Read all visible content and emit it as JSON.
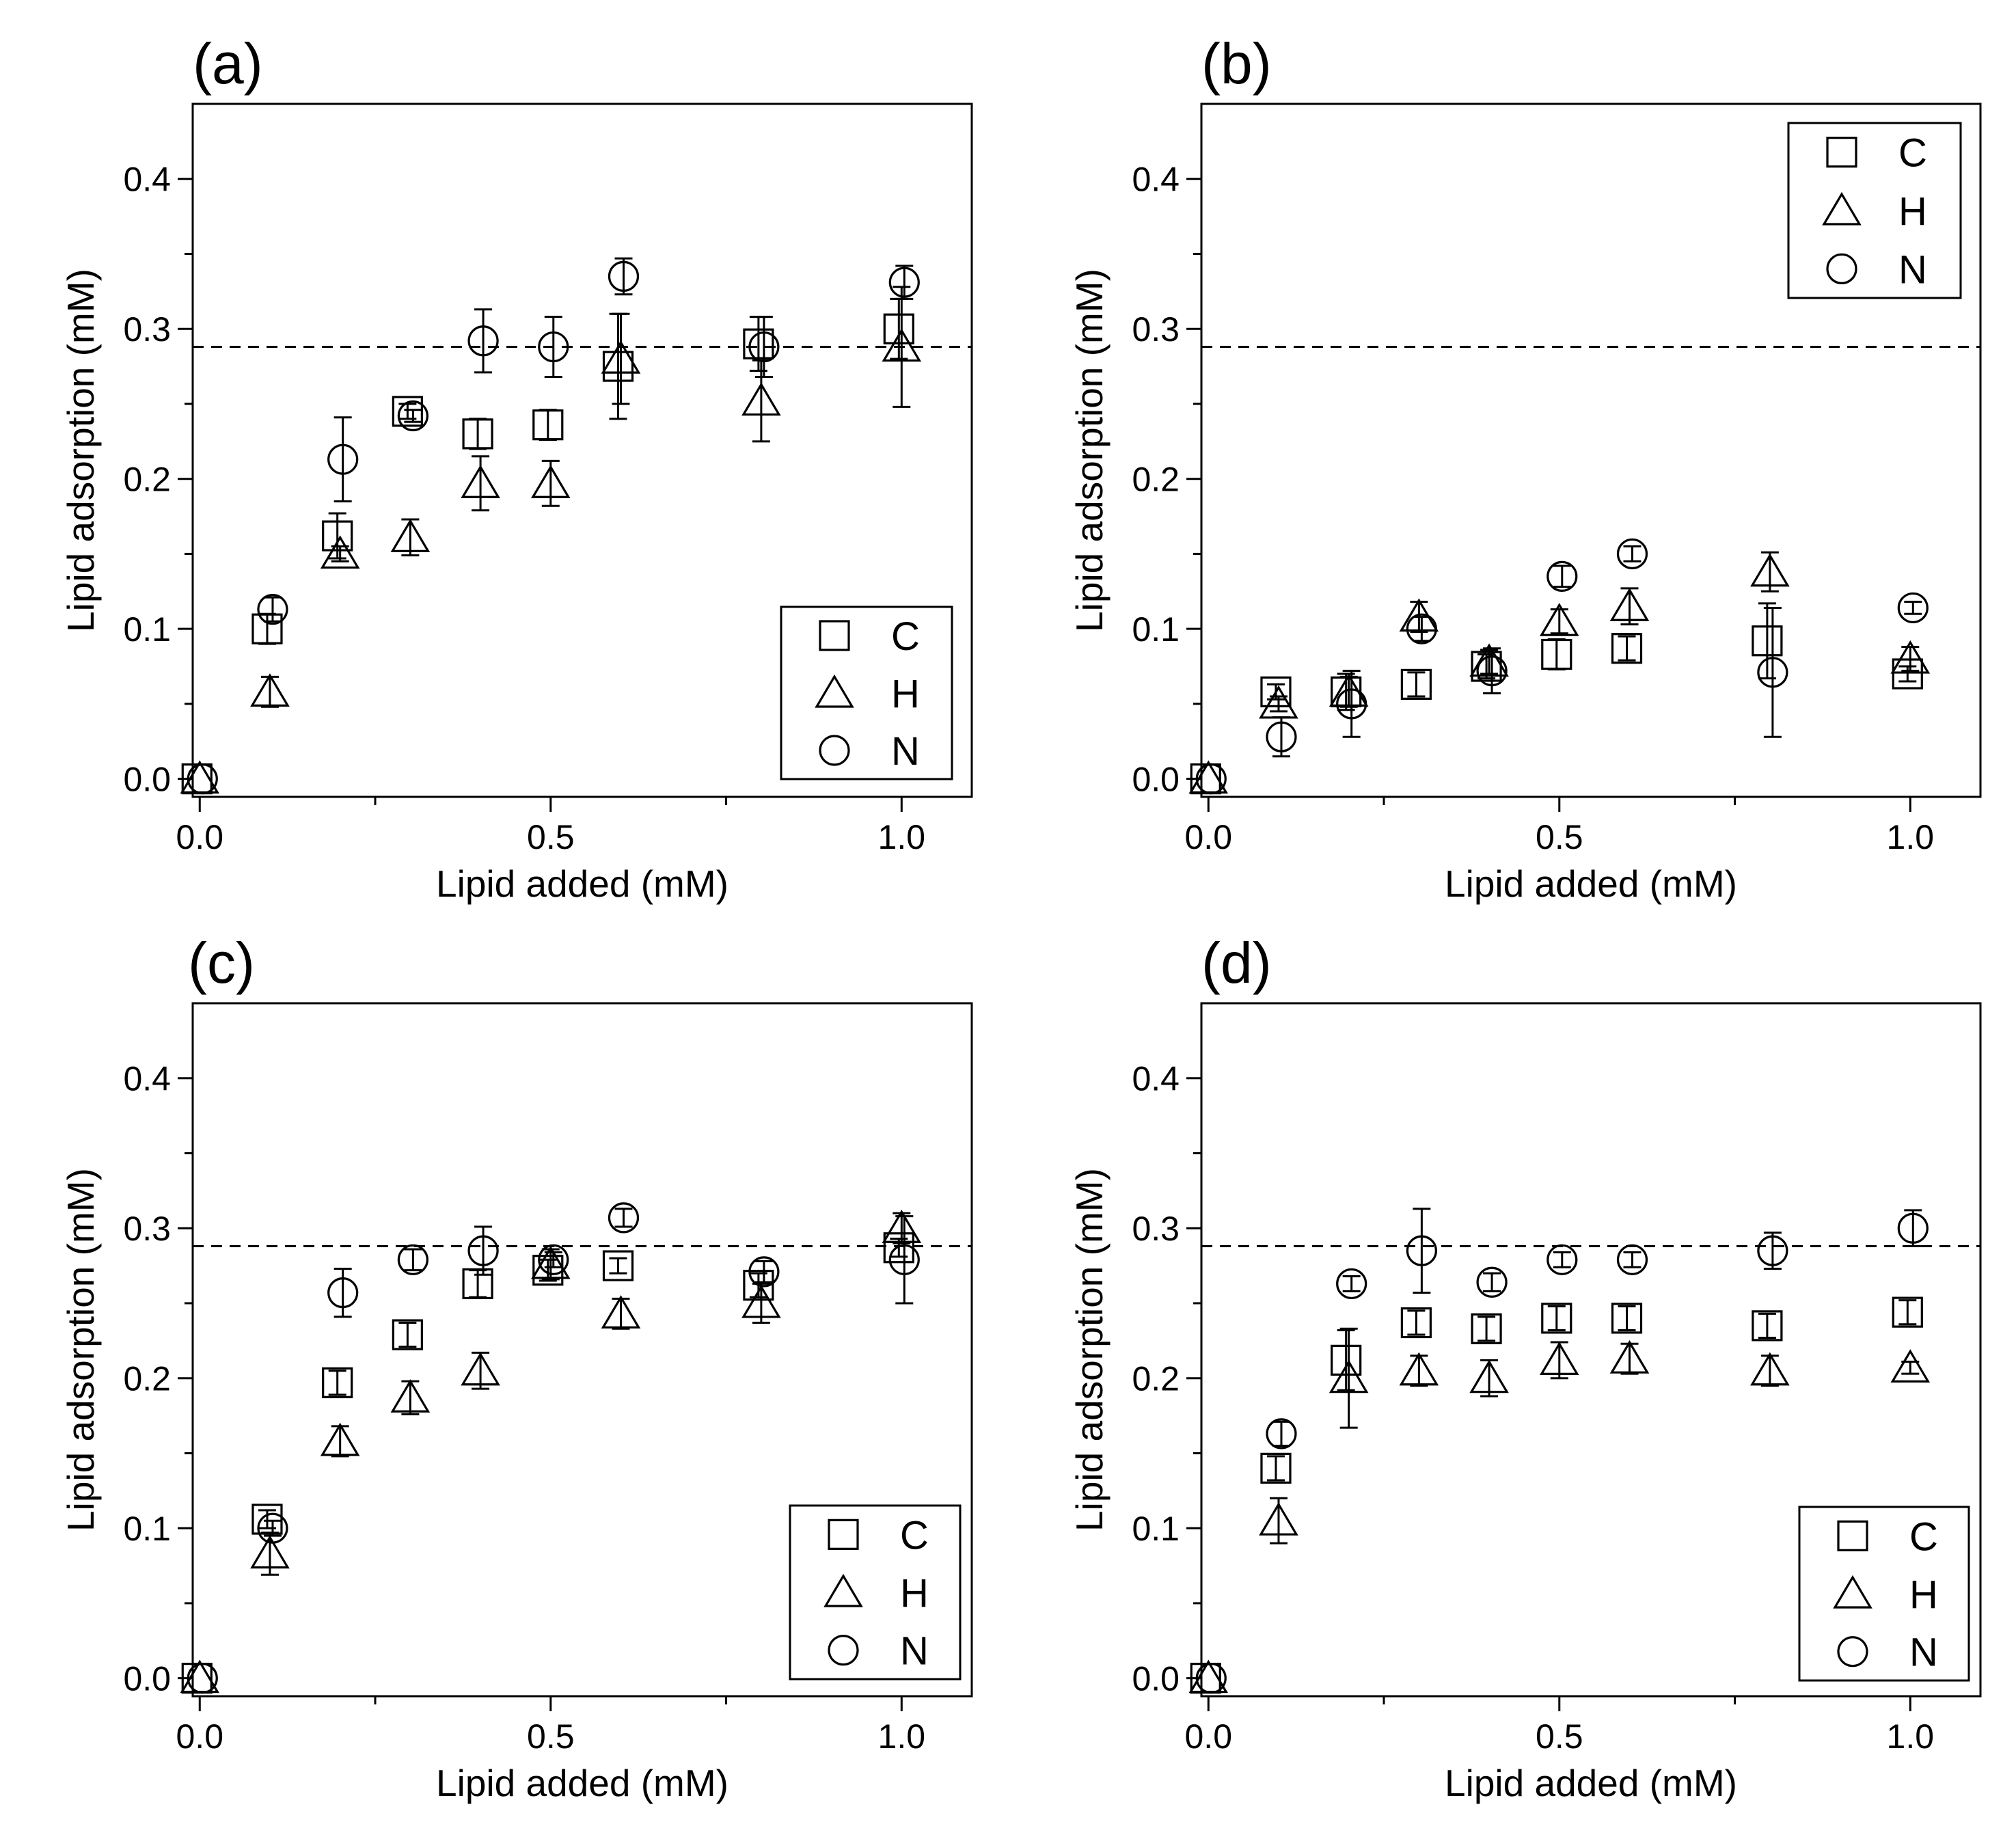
{
  "figure": {
    "reference_line_y": 0.288
  },
  "chart_data": [
    {
      "type": "scatter",
      "title": "(a)",
      "xlabel": "Lipid added (mM)",
      "ylabel": "Lipid adsorption (mM)",
      "xlim": [
        -0.01,
        1.1
      ],
      "ylim": [
        -0.012,
        0.45
      ],
      "xticks": [
        0.0,
        0.5,
        1.0
      ],
      "xtick_labels": [
        "0.0",
        "0.5",
        "1.0"
      ],
      "yticks": [
        0.0,
        0.1,
        0.2,
        0.3,
        0.4
      ],
      "ytick_labels": [
        "0.0",
        "0.1",
        "0.2",
        "0.3",
        "0.4"
      ],
      "reference_line": 0.288,
      "legend": {
        "position": "bottom-right",
        "labels": [
          "C",
          "H",
          "N"
        ]
      },
      "series": [
        {
          "name": "C",
          "marker": "square",
          "x": [
            0,
            0.1,
            0.2,
            0.3,
            0.4,
            0.5,
            0.6,
            0.8,
            1.0
          ],
          "y": [
            0,
            0.1,
            0.162,
            0.245,
            0.23,
            0.236,
            0.275,
            0.29,
            0.3
          ],
          "err": [
            0,
            0.01,
            0.015,
            0.005,
            0.01,
            0.01,
            0.035,
            0.018,
            0.02
          ]
        },
        {
          "name": "H",
          "marker": "triangle",
          "x": [
            0,
            0.1,
            0.2,
            0.3,
            0.4,
            0.5,
            0.6,
            0.8,
            1.0
          ],
          "y": [
            0,
            0.058,
            0.15,
            0.161,
            0.197,
            0.197,
            0.28,
            0.252,
            0.288
          ],
          "err": [
            0,
            0.01,
            0.005,
            0.012,
            0.018,
            0.015,
            0.03,
            0.027,
            0.04
          ]
        },
        {
          "name": "N",
          "marker": "circle",
          "x": [
            0,
            0.1,
            0.2,
            0.3,
            0.4,
            0.5,
            0.6,
            0.8,
            1.0
          ],
          "y": [
            0,
            0.113,
            0.213,
            0.242,
            0.292,
            0.288,
            0.335,
            0.288,
            0.331
          ],
          "err": [
            0,
            0.008,
            0.028,
            0.004,
            0.021,
            0.02,
            0.012,
            0.02,
            0.011
          ]
        }
      ]
    },
    {
      "type": "scatter",
      "title": "(b)",
      "xlabel": "Lipid added (mM)",
      "ylabel": "Lipid adsorption (mM)",
      "xlim": [
        -0.01,
        1.1
      ],
      "ylim": [
        -0.012,
        0.45
      ],
      "xticks": [
        0.0,
        0.5,
        1.0
      ],
      "xtick_labels": [
        "0.0",
        "0.5",
        "1.0"
      ],
      "yticks": [
        0.0,
        0.1,
        0.2,
        0.3,
        0.4
      ],
      "ytick_labels": [
        "0.0",
        "0.1",
        "0.2",
        "0.3",
        "0.4"
      ],
      "reference_line": 0.288,
      "legend": {
        "position": "top-right",
        "labels": [
          "C",
          "H",
          "N"
        ]
      },
      "series": [
        {
          "name": "C",
          "marker": "square",
          "x": [
            0,
            0.1,
            0.2,
            0.3,
            0.4,
            0.5,
            0.6,
            0.8,
            1.0
          ],
          "y": [
            0,
            0.058,
            0.058,
            0.063,
            0.075,
            0.083,
            0.087,
            0.092,
            0.07
          ],
          "err": [
            0,
            0.005,
            0.012,
            0.008,
            0.008,
            0.01,
            0.008,
            0.025,
            0.005
          ]
        },
        {
          "name": "H",
          "marker": "triangle",
          "x": [
            0,
            0.1,
            0.2,
            0.3,
            0.4,
            0.5,
            0.6,
            0.8,
            1.0
          ],
          "y": [
            0,
            0.05,
            0.058,
            0.108,
            0.078,
            0.105,
            0.115,
            0.138,
            0.08
          ],
          "err": [
            0,
            0.005,
            0.01,
            0.01,
            0.008,
            0.008,
            0.012,
            0.013,
            0.008
          ]
        },
        {
          "name": "N",
          "marker": "circle",
          "x": [
            0,
            0.1,
            0.2,
            0.3,
            0.4,
            0.5,
            0.6,
            0.8,
            1.0
          ],
          "y": [
            0,
            0.028,
            0.05,
            0.1,
            0.072,
            0.135,
            0.15,
            0.071,
            0.114
          ],
          "err": [
            0,
            0.013,
            0.022,
            0.008,
            0.015,
            0.007,
            0.005,
            0.043,
            0.004
          ]
        }
      ]
    },
    {
      "type": "scatter",
      "title": "(c)",
      "xlabel": "Lipid added (mM)",
      "ylabel": "Lipid adsorption (mM)",
      "xlim": [
        -0.01,
        1.1
      ],
      "ylim": [
        -0.012,
        0.45
      ],
      "xticks": [
        0.0,
        0.5,
        1.0
      ],
      "xtick_labels": [
        "0.0",
        "0.5",
        "1.0"
      ],
      "yticks": [
        0.0,
        0.1,
        0.2,
        0.3,
        0.4
      ],
      "ytick_labels": [
        "0.0",
        "0.1",
        "0.2",
        "0.3",
        "0.4"
      ],
      "reference_line": 0.288,
      "legend": {
        "position": "bottom-right",
        "labels": [
          "C",
          "H",
          "N"
        ]
      },
      "series": [
        {
          "name": "C",
          "marker": "square",
          "x": [
            0,
            0.1,
            0.2,
            0.3,
            0.4,
            0.5,
            0.6,
            0.8,
            1.0
          ],
          "y": [
            0,
            0.106,
            0.197,
            0.229,
            0.263,
            0.272,
            0.275,
            0.262,
            0.287
          ],
          "err": [
            0,
            0.006,
            0.008,
            0.008,
            0.009,
            0.007,
            0.005,
            0.008,
            0.006
          ]
        },
        {
          "name": "H",
          "marker": "triangle",
          "x": [
            0,
            0.1,
            0.2,
            0.3,
            0.4,
            0.5,
            0.6,
            0.8,
            1.0
          ],
          "y": [
            0,
            0.083,
            0.158,
            0.187,
            0.205,
            0.276,
            0.243,
            0.25,
            0.3
          ],
          "err": [
            0,
            0.014,
            0.01,
            0.011,
            0.012,
            0.01,
            0.01,
            0.013,
            0.01
          ]
        },
        {
          "name": "N",
          "marker": "circle",
          "x": [
            0,
            0.1,
            0.2,
            0.3,
            0.4,
            0.5,
            0.6,
            0.8,
            1.0
          ],
          "y": [
            0,
            0.1,
            0.257,
            0.279,
            0.285,
            0.279,
            0.307,
            0.271,
            0.279
          ],
          "err": [
            0,
            0.005,
            0.016,
            0.007,
            0.016,
            0.005,
            0.006,
            0.007,
            0.029
          ]
        }
      ]
    },
    {
      "type": "scatter",
      "title": "(d)",
      "xlabel": "Lipid added (mM)",
      "ylabel": "Lipid adsorption (mM)",
      "xlim": [
        -0.01,
        1.1
      ],
      "ylim": [
        -0.012,
        0.45
      ],
      "xticks": [
        0.0,
        0.5,
        1.0
      ],
      "xtick_labels": [
        "0.0",
        "0.5",
        "1.0"
      ],
      "yticks": [
        0.0,
        0.1,
        0.2,
        0.3,
        0.4
      ],
      "ytick_labels": [
        "0.0",
        "0.1",
        "0.2",
        "0.3",
        "0.4"
      ],
      "reference_line": 0.288,
      "legend": {
        "position": "bottom-right",
        "labels": [
          "C",
          "H",
          "N"
        ]
      },
      "series": [
        {
          "name": "C",
          "marker": "square",
          "x": [
            0,
            0.1,
            0.2,
            0.3,
            0.4,
            0.5,
            0.6,
            0.8,
            1.0
          ],
          "y": [
            0,
            0.14,
            0.212,
            0.237,
            0.233,
            0.24,
            0.24,
            0.235,
            0.244
          ],
          "err": [
            0,
            0.008,
            0.02,
            0.008,
            0.008,
            0.008,
            0.008,
            0.008,
            0.008
          ]
        },
        {
          "name": "H",
          "marker": "triangle",
          "x": [
            0,
            0.1,
            0.2,
            0.3,
            0.4,
            0.5,
            0.6,
            0.8,
            1.0
          ],
          "y": [
            0,
            0.105,
            0.2,
            0.205,
            0.2,
            0.212,
            0.213,
            0.205,
            0.207
          ],
          "err": [
            0,
            0.015,
            0.033,
            0.01,
            0.012,
            0.012,
            0.01,
            0.01,
            0.004
          ]
        },
        {
          "name": "N",
          "marker": "circle",
          "x": [
            0,
            0.1,
            0.2,
            0.3,
            0.4,
            0.5,
            0.6,
            0.8,
            1.0
          ],
          "y": [
            0,
            0.163,
            0.263,
            0.285,
            0.264,
            0.279,
            0.279,
            0.285,
            0.3
          ],
          "err": [
            0,
            0.008,
            0.005,
            0.028,
            0.006,
            0.005,
            0.005,
            0.012,
            0.012
          ]
        }
      ]
    }
  ]
}
